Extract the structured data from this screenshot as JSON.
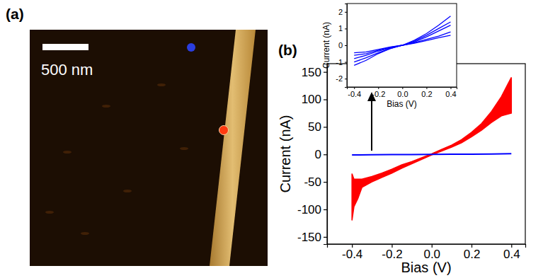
{
  "image_panel": {
    "label": "(a)",
    "scale_bar_label": "500 nm"
  },
  "chart_data": [
    {
      "type": "line",
      "annotations": [
        "(b)"
      ],
      "x_label": "Bias (V)",
      "y_label": "Current (nA)",
      "xlim": [
        -0.525,
        0.47
      ],
      "xticks": [
        -0.4,
        -0.2,
        {
          "value": 0,
          "label": "0.0"
        },
        0.2,
        0.4
      ],
      "ylim": [
        -163,
        165
      ],
      "yticks": [
        -150,
        -100,
        -50,
        0,
        50,
        100,
        150
      ],
      "series": [
        {
          "type": "area",
          "color": "#ff0000",
          "x": [
            -0.4,
            -0.39,
            -0.37,
            -0.35,
            -0.3,
            -0.25,
            -0.2,
            -0.15,
            -0.1,
            -0.05,
            0,
            0.05,
            0.1,
            0.15,
            0.2,
            0.25,
            0.3,
            0.35,
            0.4
          ],
          "low": [
            -120,
            -95,
            -80,
            -60,
            -50,
            -42,
            -34,
            -25,
            -17,
            -9,
            -1,
            6,
            13,
            21,
            32,
            44,
            58,
            70,
            75
          ],
          "high": [
            -35,
            -45,
            -45,
            -45,
            -40,
            -34,
            -27,
            -19,
            -13,
            -6,
            1,
            9,
            17,
            27,
            40,
            56,
            78,
            105,
            140
          ]
        },
        {
          "type": "line",
          "color": "#0000ff",
          "x": [
            -0.4,
            -0.3,
            -0.2,
            -0.1,
            0,
            0.1,
            0.2,
            0.3,
            0.4
          ],
          "values": [
            -1,
            -0.7,
            -0.4,
            -0.15,
            0,
            0.2,
            0.5,
            0.8,
            1.2
          ]
        }
      ]
    },
    {
      "type": "line",
      "x_label": "Bias (V)",
      "y_label": "Current (nA)",
      "xlim": [
        -0.46,
        0.45
      ],
      "xticks": [
        -0.4,
        -0.2,
        {
          "value": 0,
          "label": "0.0"
        },
        0.2,
        0.4
      ],
      "ylim": [
        -2.5,
        2.5
      ],
      "yticks": [
        -2,
        -1,
        0,
        1,
        2
      ],
      "series": [
        {
          "color": "#0000ff",
          "x": [
            -0.4,
            -0.3,
            -0.2,
            -0.1,
            0,
            0.1,
            0.2,
            0.3,
            0.4
          ],
          "values": [
            -1.2,
            -0.9,
            -0.5,
            -0.2,
            0,
            0.3,
            0.7,
            1.2,
            1.75
          ]
        },
        {
          "color": "#0000ff",
          "x": [
            -0.4,
            -0.3,
            -0.2,
            -0.1,
            0,
            0.1,
            0.2,
            0.3,
            0.4
          ],
          "values": [
            -1.0,
            -0.75,
            -0.45,
            -0.2,
            0,
            0.25,
            0.6,
            1.0,
            1.4
          ]
        },
        {
          "color": "#0000ff",
          "x": [
            -0.4,
            -0.3,
            -0.2,
            -0.1,
            0,
            0.1,
            0.2,
            0.3,
            0.4
          ],
          "values": [
            -0.8,
            -0.6,
            -0.35,
            -0.15,
            0,
            0.2,
            0.5,
            0.85,
            1.2
          ]
        },
        {
          "color": "#0000ff",
          "x": [
            -0.4,
            -0.3,
            -0.2,
            -0.1,
            0,
            0.1,
            0.2,
            0.3,
            0.4
          ],
          "values": [
            -0.6,
            -0.5,
            -0.3,
            -0.12,
            0,
            0.15,
            0.35,
            0.55,
            0.8
          ]
        },
        {
          "color": "#0000ff",
          "x": [
            -0.4,
            -0.3,
            -0.2,
            -0.1,
            0,
            0.1,
            0.2,
            0.3,
            0.4
          ],
          "values": [
            -0.45,
            -0.4,
            -0.25,
            -0.1,
            0,
            0.12,
            0.28,
            0.45,
            0.6
          ]
        }
      ]
    }
  ]
}
